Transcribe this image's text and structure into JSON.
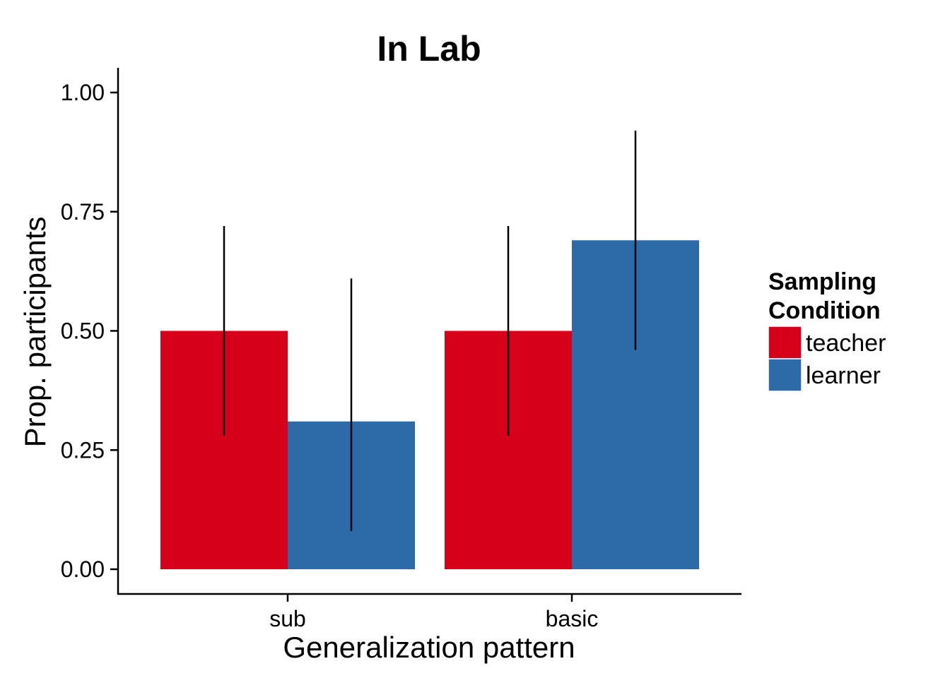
{
  "chart_data": {
    "type": "bar",
    "title": "In Lab",
    "xlabel": "Generalization pattern",
    "ylabel": "Prop. participants",
    "categories": [
      "sub",
      "basic"
    ],
    "ylim": [
      0,
      1.05
    ],
    "yticks": [
      "0.00",
      "0.25",
      "0.50",
      "0.75",
      "1.00"
    ],
    "ytick_values": [
      0,
      0.25,
      0.5,
      0.75,
      1.0
    ],
    "grid": false,
    "legend": {
      "title_line1": "Sampling",
      "title_line2": "Condition",
      "placement": "right"
    },
    "series": [
      {
        "name": "teacher",
        "color": "#d7001a",
        "values": [
          0.5,
          0.5
        ],
        "error_low": [
          0.28,
          0.28
        ],
        "error_high": [
          0.72,
          0.72
        ]
      },
      {
        "name": "learner",
        "color": "#2d6aa8",
        "values": [
          0.31,
          0.69
        ],
        "error_low": [
          0.08,
          0.46
        ],
        "error_high": [
          0.61,
          0.92
        ]
      }
    ]
  }
}
